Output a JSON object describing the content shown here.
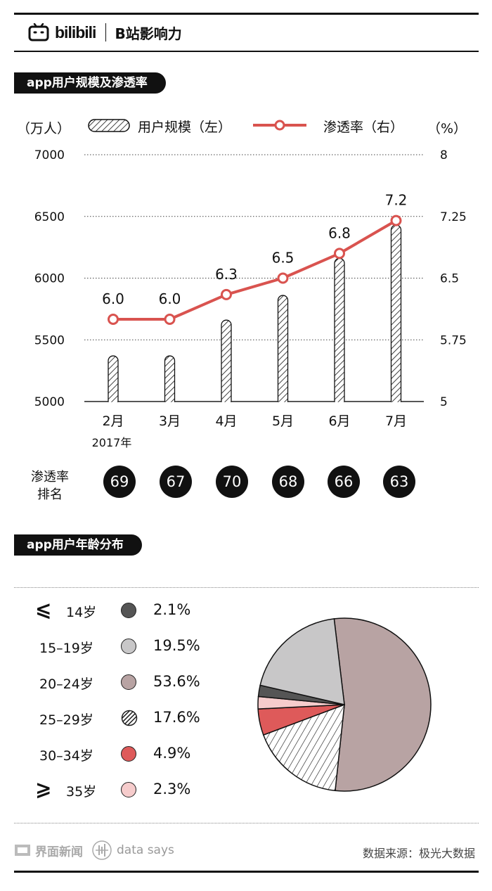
{
  "header": {
    "logo_text": "bilibili",
    "title": "B站影响力"
  },
  "section1": {
    "title": "app用户规模及渗透率"
  },
  "section2": {
    "title": "app用户年龄分布"
  },
  "units": {
    "left": "（万人）",
    "right": "（%）"
  },
  "legend": {
    "bar_label": "用户规模（左）",
    "line_label": "渗透率（右）"
  },
  "chart_data": [
    {
      "type": "bar+line",
      "categories": [
        "2月",
        "3月",
        "4月",
        "5月",
        "6月",
        "7月"
      ],
      "x_sublabel": "2017年",
      "series": [
        {
          "name": "用户规模（左）",
          "axis": "left",
          "values": [
            5370,
            5370,
            5660,
            5860,
            6160,
            6430
          ]
        },
        {
          "name": "渗透率（右）",
          "axis": "right",
          "values": [
            6.0,
            6.0,
            6.3,
            6.5,
            6.8,
            7.2
          ]
        }
      ],
      "data_labels": [
        "6.0",
        "6.0",
        "6.3",
        "6.5",
        "6.8",
        "7.2"
      ],
      "left_axis": {
        "ylim": [
          5000,
          7000
        ],
        "ticks": [
          "5000",
          "5500",
          "6000",
          "6500",
          "7000"
        ]
      },
      "right_axis": {
        "ylim": [
          5,
          8
        ],
        "ticks": [
          "5",
          "5.75",
          "6.5",
          "7.25",
          "8"
        ]
      },
      "colors": {
        "line": "#d9534f",
        "bars": "hatched black"
      }
    },
    {
      "type": "pie",
      "slices": [
        {
          "label": "≤14岁",
          "value": 2.1,
          "pct": "2.1%",
          "color": "#555555"
        },
        {
          "label": "15-19岁",
          "value": 19.5,
          "pct": "19.5%",
          "color": "#c8c7c8"
        },
        {
          "label": "20-24岁",
          "value": 53.6,
          "pct": "53.6%",
          "color": "#b8a3a3"
        },
        {
          "label": "25-29岁",
          "value": 17.6,
          "pct": "17.6%",
          "color": "hatch"
        },
        {
          "label": "30-34岁",
          "value": 4.9,
          "pct": "4.9%",
          "color": "#de5a5a"
        },
        {
          "label": "≥35岁",
          "value": 2.3,
          "pct": "2.3%",
          "color": "#f6cccc"
        }
      ]
    }
  ],
  "rank": {
    "label_line1": "渗透率",
    "label_line2": "排名",
    "values": [
      "69",
      "67",
      "70",
      "68",
      "66",
      "63"
    ]
  },
  "age_legend": [
    {
      "sym": "⩽",
      "label": "14岁",
      "pct": "2.1%"
    },
    {
      "sym": "",
      "label": "15–19岁",
      "pct": "19.5%"
    },
    {
      "sym": "",
      "label": "20–24岁",
      "pct": "53.6%"
    },
    {
      "sym": "",
      "label": "25–29岁",
      "pct": "17.6%"
    },
    {
      "sym": "",
      "label": "30–34岁",
      "pct": "4.9%"
    },
    {
      "sym": "⩾",
      "label": "35岁",
      "pct": "2.3%"
    }
  ],
  "footer": {
    "logo1": "界面新闻",
    "logo2": "data says",
    "source": "数据来源：极光大数据"
  }
}
